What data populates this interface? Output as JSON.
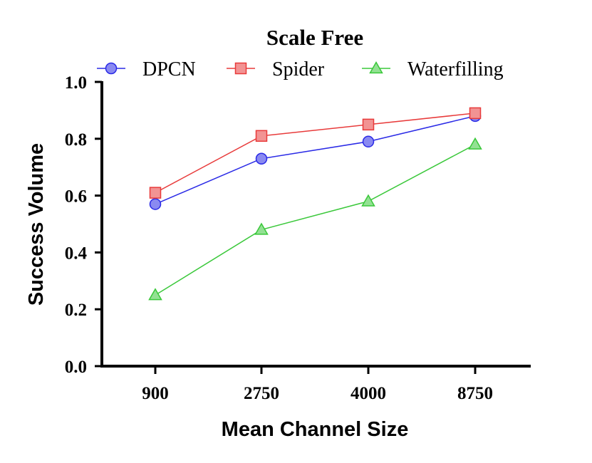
{
  "chart_data": {
    "type": "line",
    "title": "Scale Free",
    "xlabel": "Mean Channel Size",
    "ylabel": "Success Volume",
    "categories": [
      "900",
      "2750",
      "4000",
      "8750"
    ],
    "ylim": [
      0,
      1.0
    ],
    "yticks": [
      "0.0",
      "0.2",
      "0.4",
      "0.6",
      "0.8",
      "1.0"
    ],
    "grid": false,
    "legend_position": "top",
    "series": [
      {
        "name": "DPCN",
        "values": [
          0.57,
          0.73,
          0.79,
          0.88
        ],
        "color": "#2a2ae6",
        "marker": "circle"
      },
      {
        "name": "Spider",
        "values": [
          0.61,
          0.81,
          0.85,
          0.89
        ],
        "color": "#e83a3a",
        "marker": "square"
      },
      {
        "name": "Waterfilling",
        "values": [
          0.25,
          0.48,
          0.58,
          0.78
        ],
        "color": "#3ac83a",
        "marker": "triangle"
      }
    ]
  }
}
